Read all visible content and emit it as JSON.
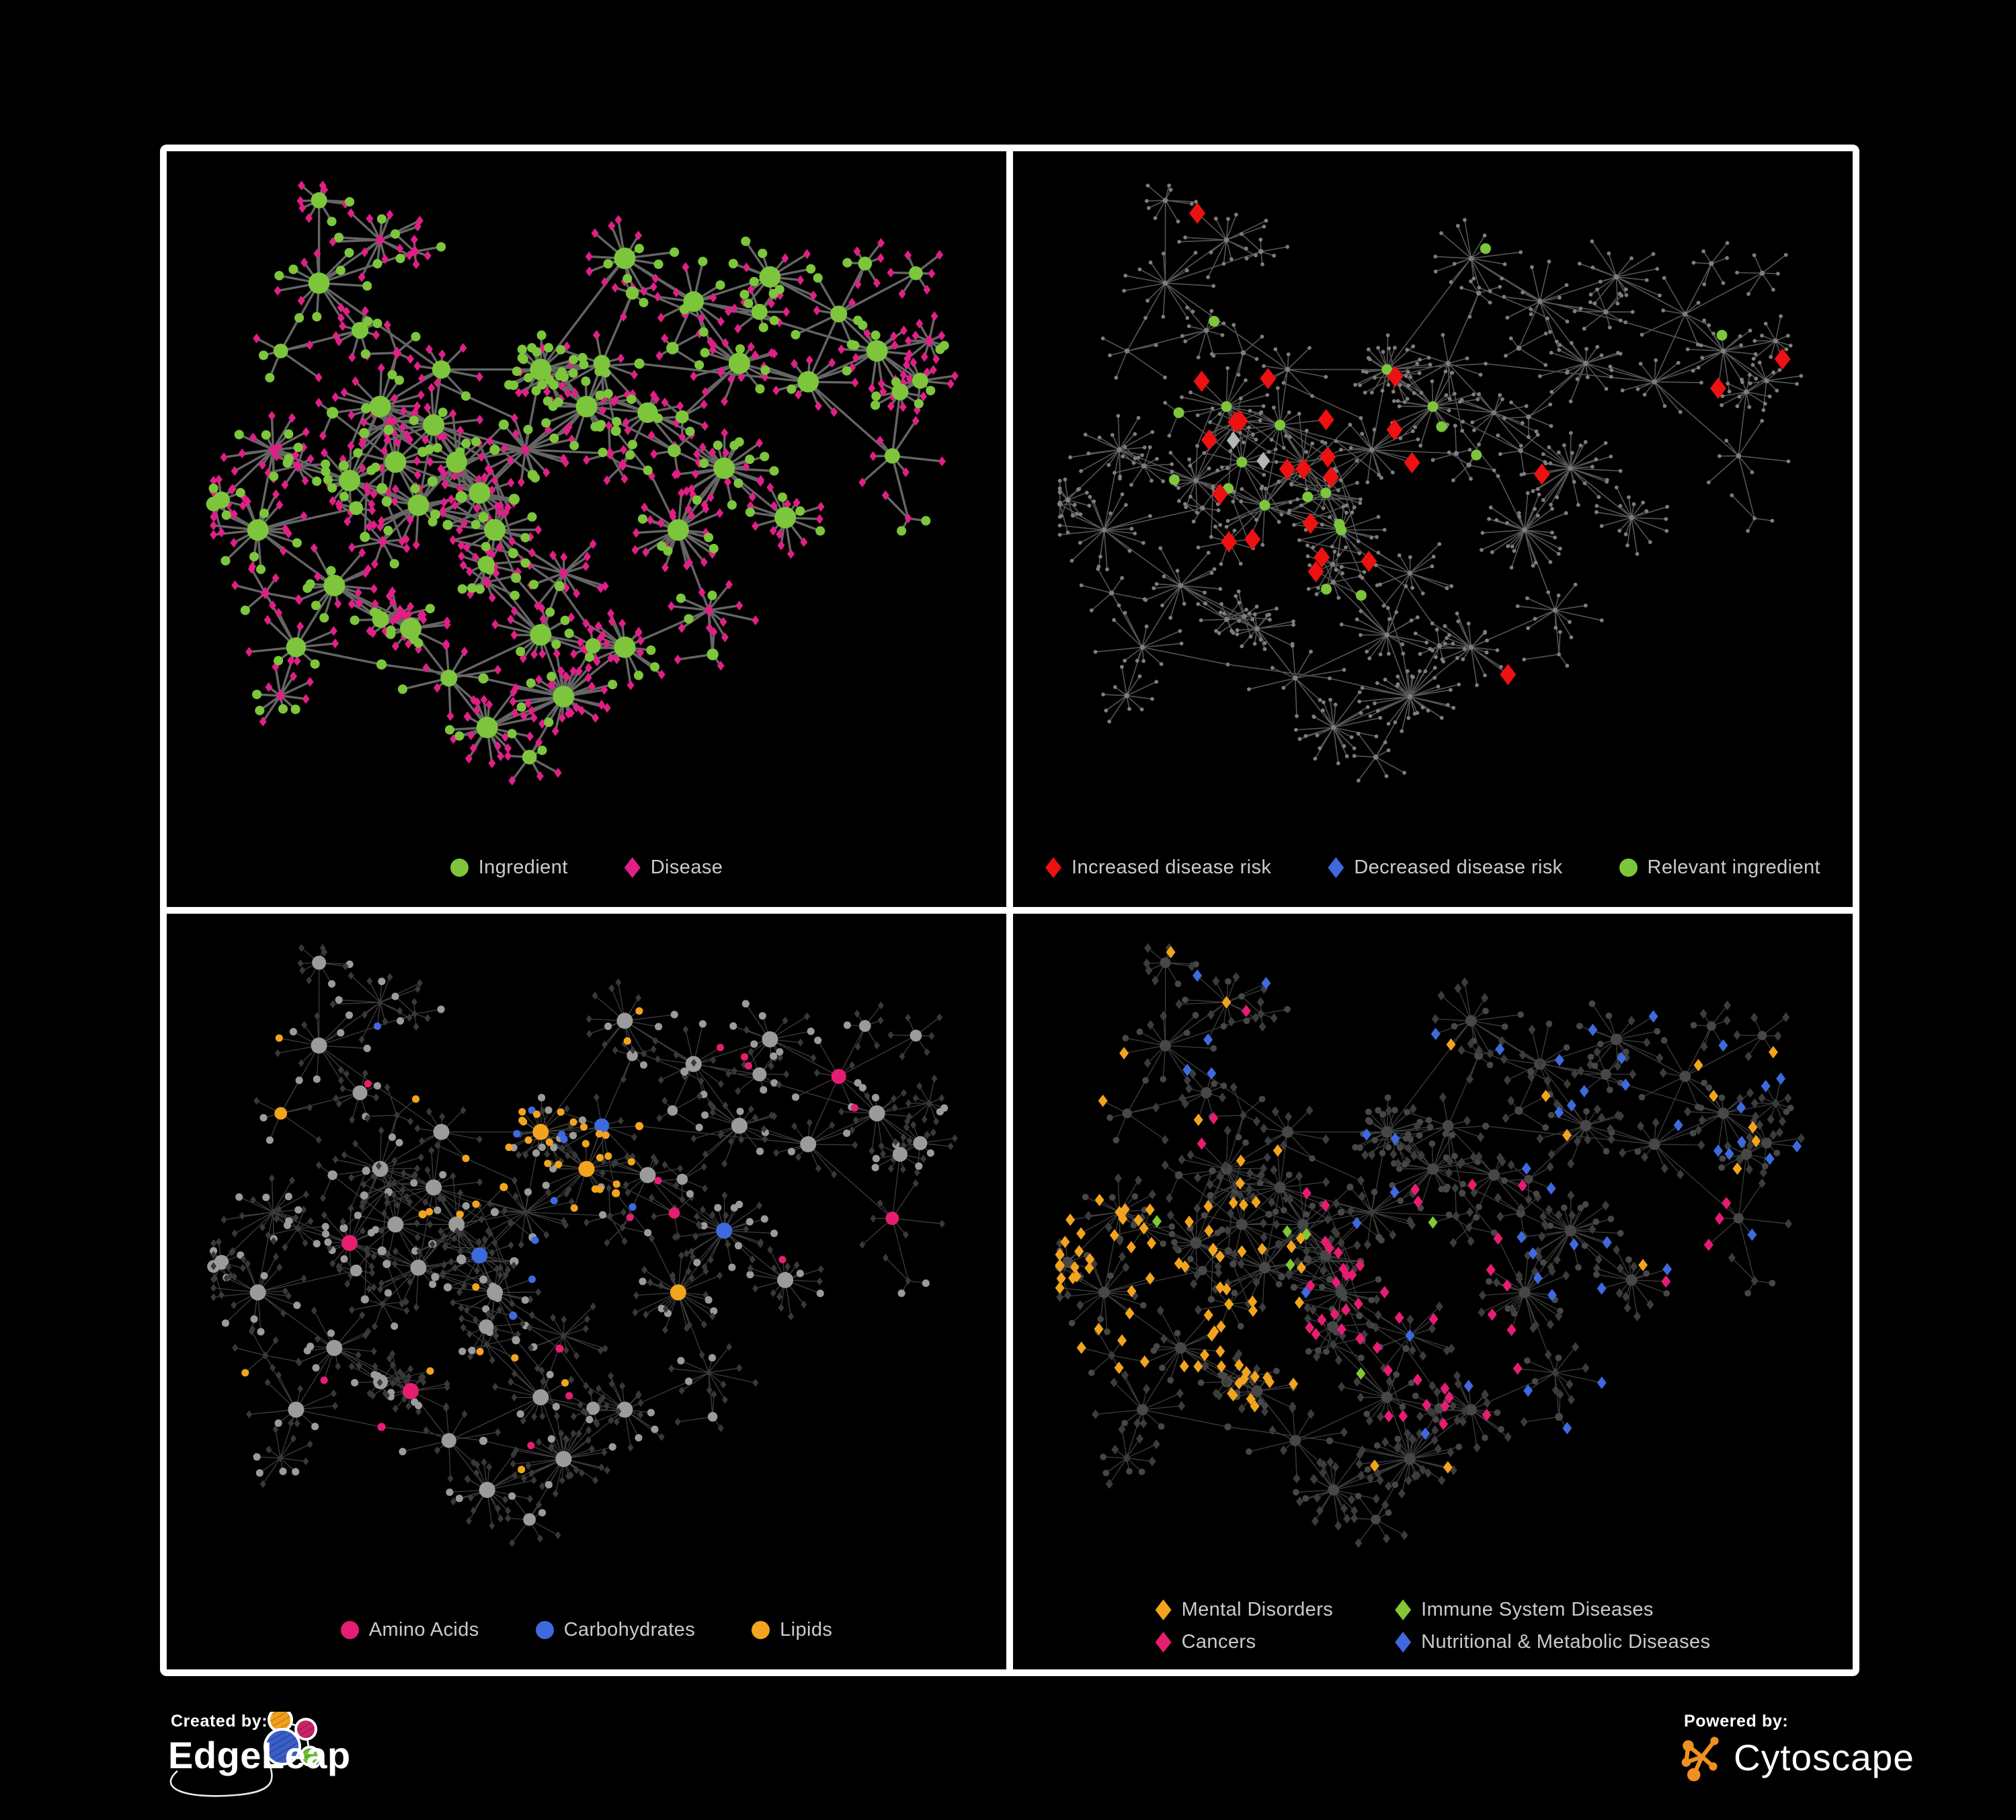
{
  "canvas": {
    "background": "#000000",
    "panel_border": "#ffffff",
    "legend_text_color": "#cbcbcb"
  },
  "panels": [
    {
      "name": "ingredient-disease-network",
      "legend": [
        {
          "shape": "circle",
          "color": "#7dc63c",
          "label": "Ingredient"
        },
        {
          "shape": "diamond",
          "color": "#e01f87",
          "label": "Disease"
        }
      ]
    },
    {
      "name": "disease-risk-network",
      "legend": [
        {
          "shape": "diamond",
          "color": "#ed1111",
          "label": "Increased disease risk"
        },
        {
          "shape": "diamond",
          "color": "#3f6ade",
          "label": "Decreased disease risk"
        },
        {
          "shape": "circle",
          "color": "#7dc63c",
          "label": "Relevant ingredient"
        }
      ]
    },
    {
      "name": "nutrient-class-network",
      "legend": [
        {
          "shape": "circle",
          "color": "#e61d72",
          "label": "Amino Acids"
        },
        {
          "shape": "circle",
          "color": "#3f6ade",
          "label": "Carbohydrates"
        },
        {
          "shape": "circle",
          "color": "#f2a41f",
          "label": "Lipids"
        }
      ]
    },
    {
      "name": "disease-class-network",
      "legend": [
        {
          "shape": "diamond",
          "color": "#f2a41f",
          "label": "Mental Disorders"
        },
        {
          "shape": "diamond",
          "color": "#82c832",
          "label": "Immune System Diseases"
        },
        {
          "shape": "diamond",
          "color": "#e61d72",
          "label": "Cancers"
        },
        {
          "shape": "diamond",
          "color": "#3f6ade",
          "label": "Nutritional & Metabolic Diseases"
        }
      ]
    }
  ],
  "footer": {
    "created_by": {
      "label": "Created by:",
      "brand": "EdgeLeap"
    },
    "powered_by": {
      "label": "Powered by:",
      "brand": "Cytoscape"
    },
    "cytoscape_orange": "#ef9122",
    "edgeleap_node_colors": {
      "blue": "#3a5fc8",
      "orange": "#f0a01e",
      "magenta": "#c92566",
      "green": "#6abf2e"
    }
  },
  "network": {
    "seed": 13,
    "styles": {
      "p1": {
        "edge": "#6e6e6e",
        "edgeWidth": 3.4,
        "edgeOpacity": 0.92,
        "ingredient": "#7dc63c",
        "disease": "#e01f87"
      },
      "p2": {
        "edge": "#646464",
        "edgeWidth": 1.6,
        "edgeOpacity": 0.85,
        "plain": "#7e7e7e",
        "red": "#ed1111",
        "blue": "#3f6ade",
        "gray": "#b5b5b5",
        "green": "#7dc63c"
      },
      "p3": {
        "edge": "#575757",
        "edgeWidth": 1.3,
        "edgeOpacity": 0.7,
        "plain": "#9b9b9b",
        "disease": "#393939",
        "amino": "#e61d72",
        "carb": "#3f6ade",
        "lipid": "#f2a41f"
      },
      "p4": {
        "edge": "#575757",
        "edgeWidth": 1.3,
        "edgeOpacity": 0.7,
        "circle": "#474747",
        "disease": "#3c3c3c",
        "mental": "#f2a41f",
        "immune": "#82c832",
        "cancer": "#e61d72",
        "nutri": "#3f6ade"
      }
    }
  }
}
